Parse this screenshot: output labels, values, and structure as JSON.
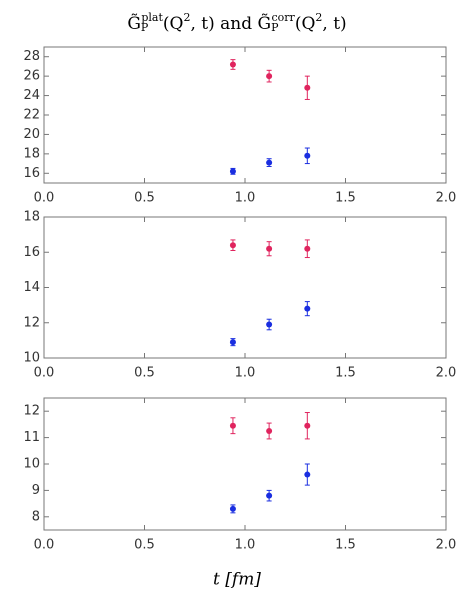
{
  "chart_data": [
    {
      "type": "scatter",
      "title": [
        {
          "text": "G̃",
          "pos": "base"
        },
        {
          "text": "P",
          "pos": "sub"
        },
        {
          "text": "plat",
          "pos": "sup"
        },
        {
          "text": "(Q",
          "pos": "base"
        },
        {
          "text": "2",
          "pos": "sup"
        },
        {
          "text": ", t) and G̃",
          "pos": "base"
        },
        {
          "text": "P",
          "pos": "sub"
        },
        {
          "text": "corr",
          "pos": "sup"
        },
        {
          "text": "(Q",
          "pos": "base"
        },
        {
          "text": "2",
          "pos": "sup"
        },
        {
          "text": ", t)",
          "pos": "base"
        }
      ],
      "xlim": [
        0,
        2
      ],
      "xticks": [
        {
          "value": 0,
          "label": "0.0"
        },
        {
          "value": 0.5,
          "label": "0.5"
        },
        {
          "value": 1,
          "label": "1.0"
        },
        {
          "value": 1.5,
          "label": "1.5"
        },
        {
          "value": 2,
          "label": "2.0"
        }
      ],
      "ylim": [
        15,
        29
      ],
      "yticks": [
        16,
        18,
        20,
        22,
        24,
        26,
        28
      ],
      "series": [
        {
          "color": "#e0245e",
          "x": [
            0.94,
            1.12,
            1.31
          ],
          "values": [
            27.2,
            26.0,
            24.8
          ],
          "errors": [
            0.5,
            0.6,
            1.2
          ]
        },
        {
          "color": "#1a2ee0",
          "x": [
            0.94,
            1.12,
            1.31
          ],
          "values": [
            16.2,
            17.1,
            17.8
          ],
          "errors": [
            0.3,
            0.4,
            0.8
          ]
        }
      ]
    },
    {
      "type": "scatter",
      "xlim": [
        0,
        2
      ],
      "xticks": [
        {
          "value": 0,
          "label": "0.0"
        },
        {
          "value": 0.5,
          "label": "0.5"
        },
        {
          "value": 1,
          "label": "1.0"
        },
        {
          "value": 1.5,
          "label": "1.5"
        },
        {
          "value": 2,
          "label": "2.0"
        }
      ],
      "ylim": [
        10,
        18
      ],
      "yticks": [
        10,
        12,
        14,
        16,
        18
      ],
      "series": [
        {
          "color": "#e0245e",
          "x": [
            0.94,
            1.12,
            1.31
          ],
          "values": [
            16.4,
            16.2,
            16.2
          ],
          "errors": [
            0.3,
            0.4,
            0.5
          ]
        },
        {
          "color": "#1a2ee0",
          "x": [
            0.94,
            1.12,
            1.31
          ],
          "values": [
            10.9,
            11.9,
            12.8
          ],
          "errors": [
            0.2,
            0.3,
            0.4
          ]
        }
      ]
    },
    {
      "type": "scatter",
      "xlim": [
        0,
        2
      ],
      "xticks": [
        {
          "value": 0,
          "label": "0.0"
        },
        {
          "value": 0.5,
          "label": "0.5"
        },
        {
          "value": 1,
          "label": "1.0"
        },
        {
          "value": 1.5,
          "label": "1.5"
        },
        {
          "value": 2,
          "label": "2.0"
        }
      ],
      "ylim": [
        7.5,
        12.5
      ],
      "yticks": [
        8,
        9,
        10,
        11,
        12
      ],
      "xlabel": "t [fm]",
      "series": [
        {
          "color": "#e0245e",
          "x": [
            0.94,
            1.12,
            1.31
          ],
          "values": [
            11.45,
            11.25,
            11.45
          ],
          "errors": [
            0.3,
            0.3,
            0.5
          ]
        },
        {
          "color": "#1a2ee0",
          "x": [
            0.94,
            1.12,
            1.31
          ],
          "values": [
            8.3,
            8.8,
            9.6
          ],
          "errors": [
            0.15,
            0.2,
            0.4
          ]
        }
      ]
    }
  ]
}
